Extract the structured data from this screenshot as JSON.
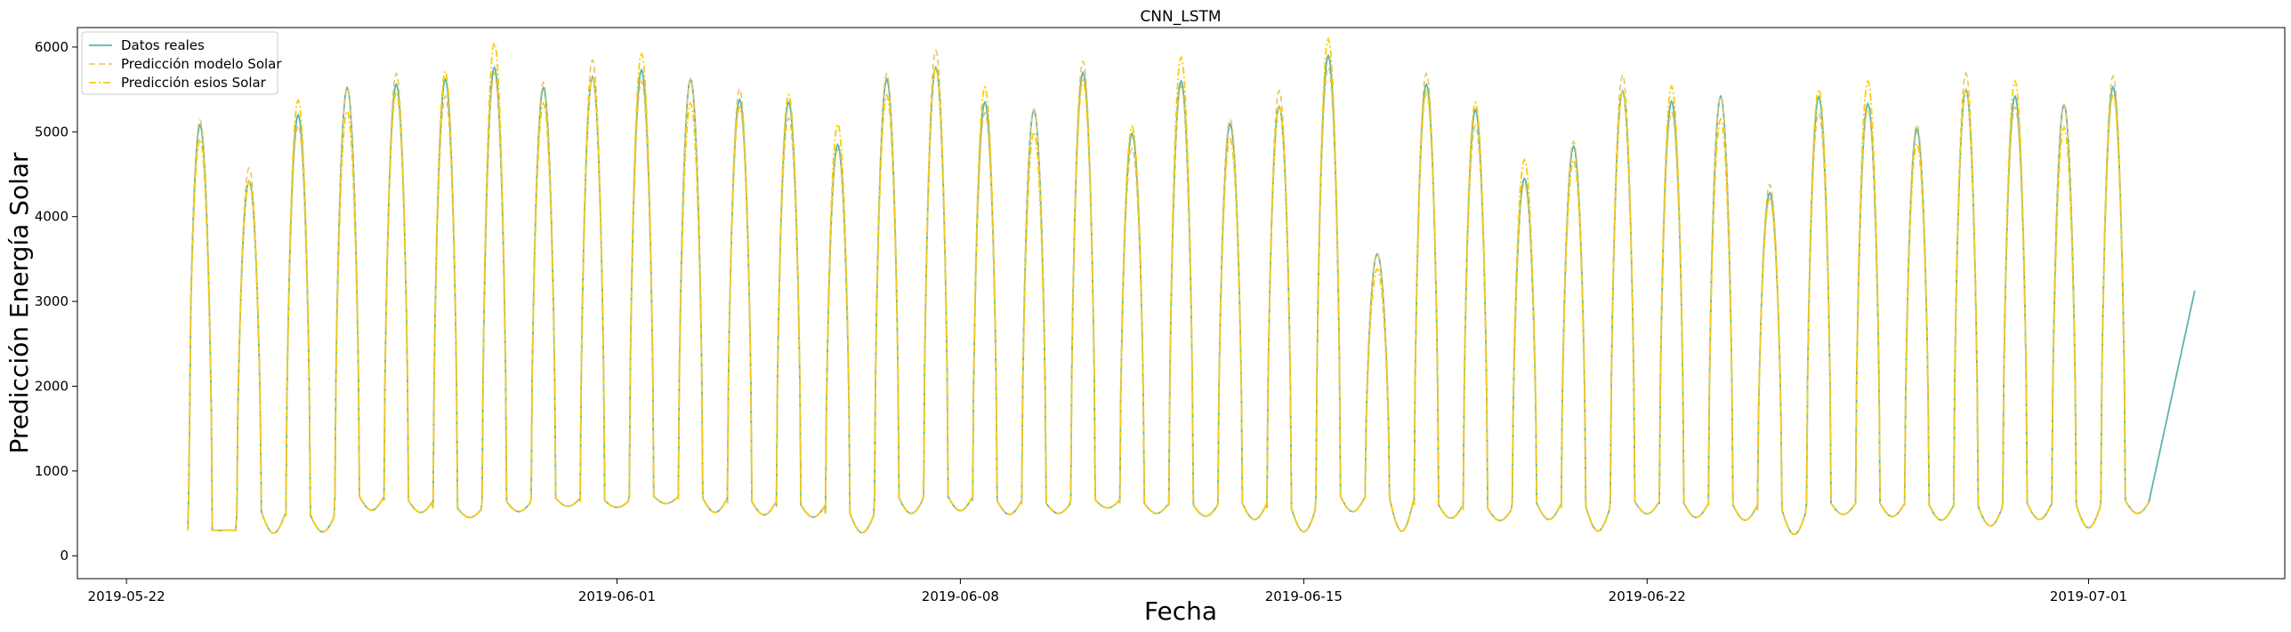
{
  "chart_data": {
    "type": "line",
    "title": "CNN_LSTM",
    "xlabel": "Fecha",
    "ylabel": "Predicción Energía Solar",
    "xlim": [
      "2019-05-21",
      "2019-07-05"
    ],
    "ylim": [
      -270,
      6230
    ],
    "x_start": "2019-05-23",
    "x_end": "2019-07-03",
    "x_ticks": [
      "2019-05-22",
      "2019-06-01",
      "2019-06-08",
      "2019-06-15",
      "2019-06-22",
      "2019-07-01"
    ],
    "y_ticks": [
      0,
      1000,
      2000,
      3000,
      4000,
      5000,
      6000
    ],
    "daily_peaks": [
      5080,
      4420,
      5200,
      5520,
      5560,
      5620,
      5760,
      5520,
      5650,
      5730,
      5620,
      5380,
      5350,
      4850,
      5620,
      5760,
      5350,
      5260,
      5700,
      4980,
      5600,
      5090,
      5300,
      5900,
      3560,
      5560,
      5260,
      4450,
      4830,
      5480,
      5360,
      5420,
      4280,
      5410,
      5330,
      5030,
      5500,
      5420,
      5320,
      5530
    ],
    "series": [
      {
        "name": "Datos reales",
        "color": "#5ab4ac",
        "style": "solid"
      },
      {
        "name": "Predicción modelo Solar",
        "color": "#e6c35c",
        "style": "dashed"
      },
      {
        "name": "Predicción esios Solar",
        "color": "#ffcc00",
        "style": "dashdot"
      }
    ],
    "legend": "top-left",
    "grid": false
  }
}
